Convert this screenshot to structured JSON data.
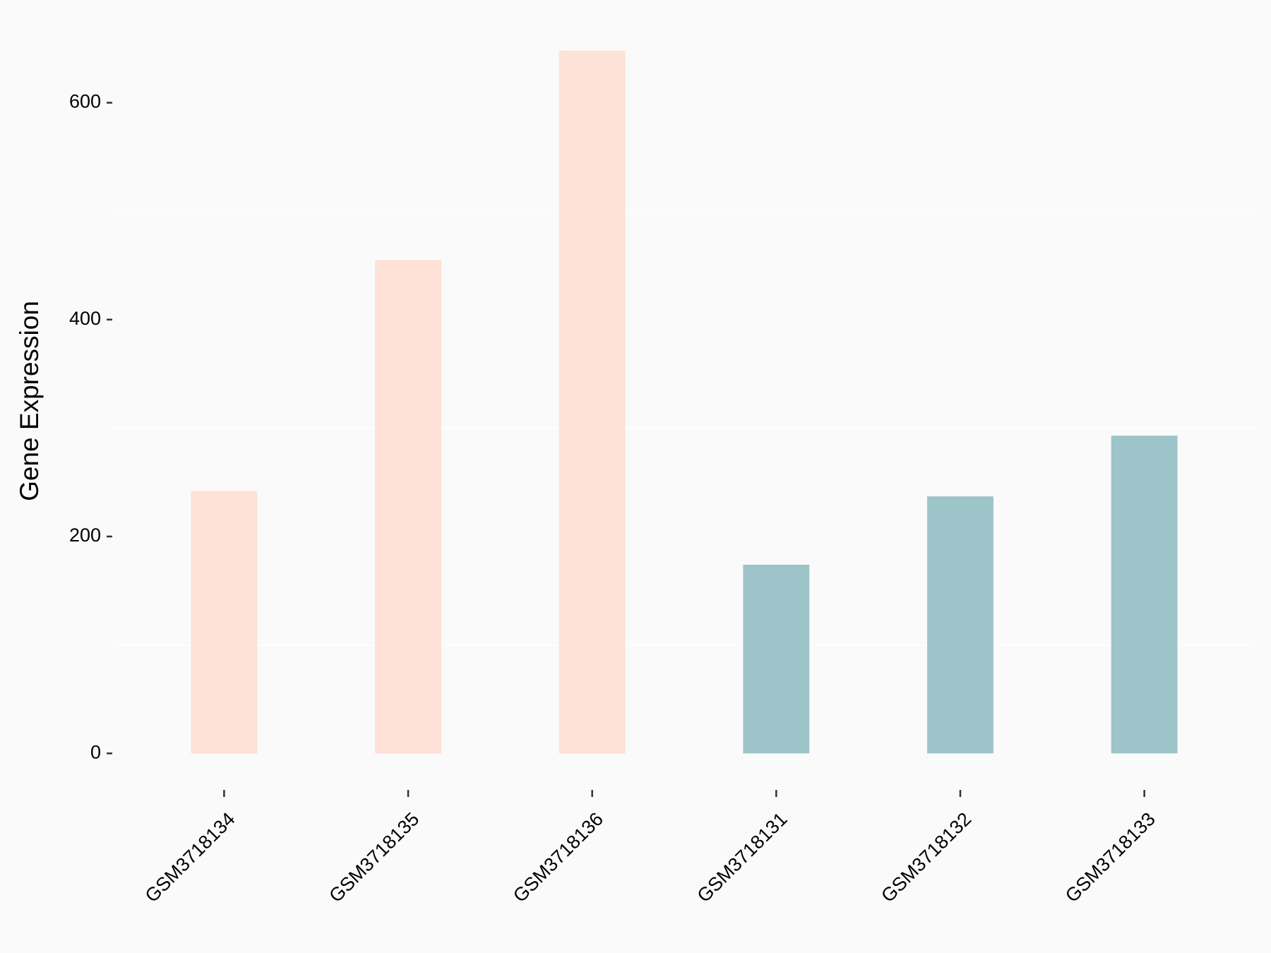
{
  "chart_data": {
    "type": "bar",
    "y_label": "Gene Expression",
    "categories": [
      "GSM3718134",
      "GSM3718135",
      "GSM3718136",
      "GSM3718131",
      "GSM3718132",
      "GSM3718133"
    ],
    "values": [
      242,
      455,
      648,
      174,
      237,
      293
    ],
    "colors": [
      "#fee1d7",
      "#fee1d7",
      "#fee1d7",
      "#9dc4c8",
      "#9dc4c8",
      "#9dc4c8"
    ],
    "ylim": [
      -32.4,
      680.4
    ],
    "yticks": [
      0,
      200,
      400,
      600
    ],
    "minor_grid": [
      100,
      300,
      500
    ]
  }
}
